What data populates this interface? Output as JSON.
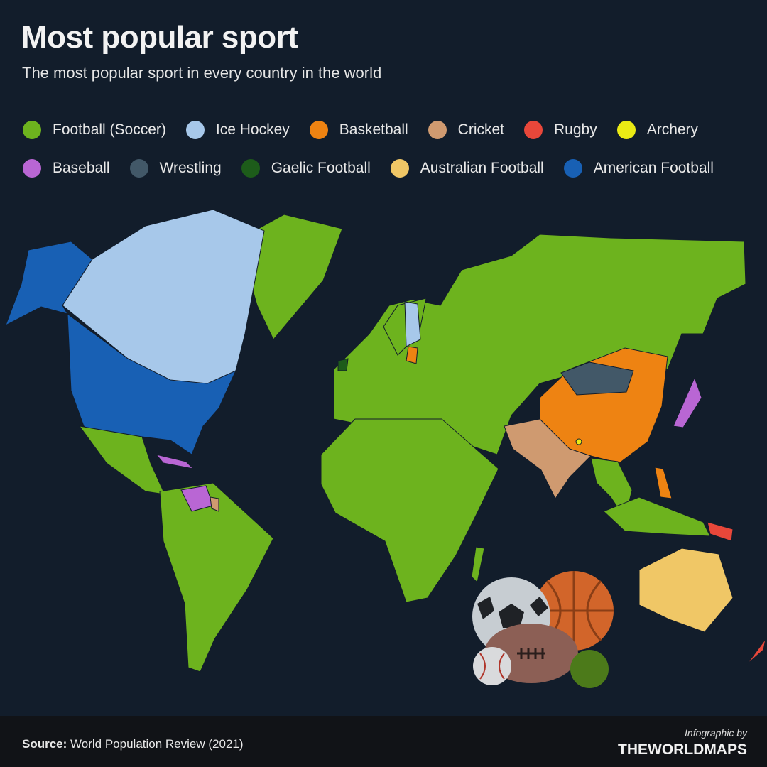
{
  "header": {
    "title": "Most popular sport",
    "subtitle": "The most popular sport in every country in the world"
  },
  "legend": [
    [
      {
        "label": "Football (Soccer)",
        "color": "#6db31e"
      },
      {
        "label": "Ice Hockey",
        "color": "#a7c8ea"
      },
      {
        "label": "Basketball",
        "color": "#ee8312"
      },
      {
        "label": "Cricket",
        "color": "#cf9a70"
      },
      {
        "label": "Rugby",
        "color": "#e8473a"
      },
      {
        "label": "Archery",
        "color": "#eaea14"
      }
    ],
    [
      {
        "label": "Baseball",
        "color": "#b966d4"
      },
      {
        "label": "Wrestling",
        "color": "#425868"
      },
      {
        "label": "Gaelic Football",
        "color": "#1d5c1a"
      },
      {
        "label": "Australian Football",
        "color": "#f0c766"
      },
      {
        "label": "American Football",
        "color": "#1860b4"
      }
    ]
  ],
  "footer": {
    "source_label": "Source:",
    "source_text": "World Population Review (2021)",
    "credit_prefix": "Infographic by",
    "credit_brand": "THEWORLDMAPS"
  }
}
